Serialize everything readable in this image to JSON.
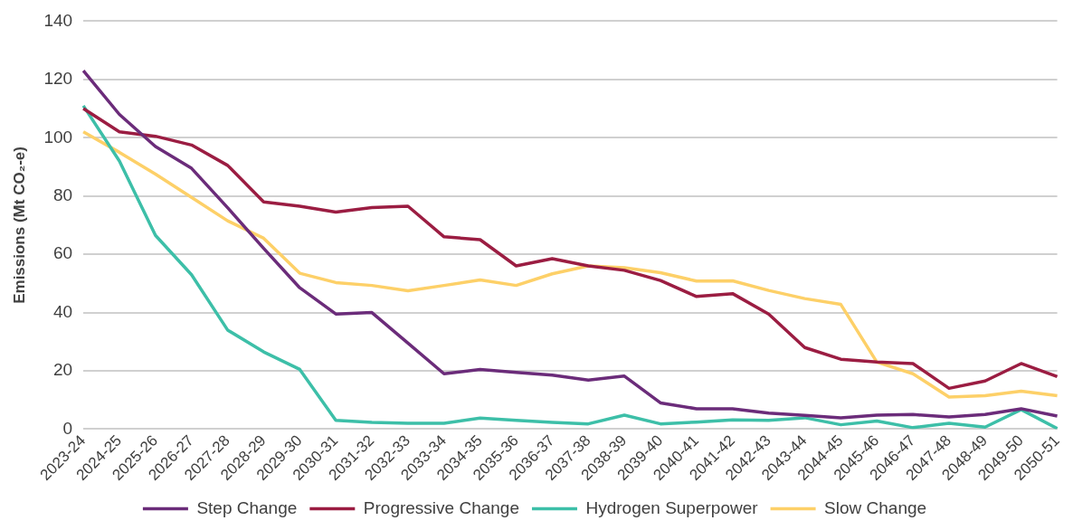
{
  "chart_data": {
    "type": "line",
    "ylabel": "Emissions (Mt CO₂-e)",
    "categories": [
      "2023-24",
      "2024-25",
      "2025-26",
      "2026-27",
      "2027-28",
      "2028-29",
      "2029-30",
      "2030-31",
      "2031-32",
      "2032-33",
      "2033-34",
      "2034-35",
      "2035-36",
      "2036-37",
      "2037-38",
      "2038-39",
      "2039-40",
      "2040-41",
      "2041-42",
      "2042-43",
      "2043-44",
      "2044-45",
      "2045-46",
      "2046-47",
      "2047-48",
      "2048-49",
      "2049-50",
      "2050-51"
    ],
    "series": [
      {
        "name": "Step Change",
        "color": "#6b2c7a",
        "values": [
          123,
          108,
          97,
          89.5,
          76,
          62,
          48.5,
          39.5,
          40,
          29.5,
          19,
          20.5,
          19.5,
          18.5,
          16.8,
          18.2,
          9,
          7,
          7,
          5.5,
          4.7,
          3.9,
          4.8,
          5,
          4.2,
          5,
          7,
          4.5
        ]
      },
      {
        "name": "Progressive Change",
        "color": "#9b1d42",
        "values": [
          110,
          102,
          100.5,
          97.5,
          90.5,
          78,
          76.5,
          74.5,
          76,
          76.5,
          66,
          65,
          56,
          58.5,
          56,
          54.5,
          51,
          45.5,
          46.5,
          39.5,
          28,
          24,
          23,
          22.5,
          14,
          16.5,
          22.5,
          18
        ]
      },
      {
        "name": "Hydrogen Superpower",
        "color": "#3dbfa8",
        "values": [
          111,
          92,
          66.5,
          53,
          34,
          26.5,
          20.5,
          3,
          2.3,
          2,
          2,
          3.8,
          3,
          2.3,
          1.8,
          4.8,
          1.8,
          2.4,
          3.2,
          3,
          3.9,
          1.5,
          2.8,
          0.5,
          2,
          0.7,
          6.7,
          0.2
        ]
      },
      {
        "name": "Slow Change",
        "color": "#fdd068",
        "values": [
          102,
          95,
          87.5,
          79.5,
          71.5,
          65.5,
          53.5,
          50.3,
          49.3,
          47.5,
          49.3,
          51.2,
          49.3,
          53.3,
          56,
          55.4,
          53.7,
          50.8,
          50.9,
          47.6,
          44.8,
          42.8,
          23,
          19,
          11,
          11.5,
          13,
          11.5
        ]
      }
    ],
    "ylim": [
      0,
      140
    ],
    "yticks": [
      0,
      20,
      40,
      60,
      80,
      100,
      120,
      140
    ],
    "grid": "y",
    "legend": "bottom",
    "marker": "none",
    "line_style": "solid"
  }
}
